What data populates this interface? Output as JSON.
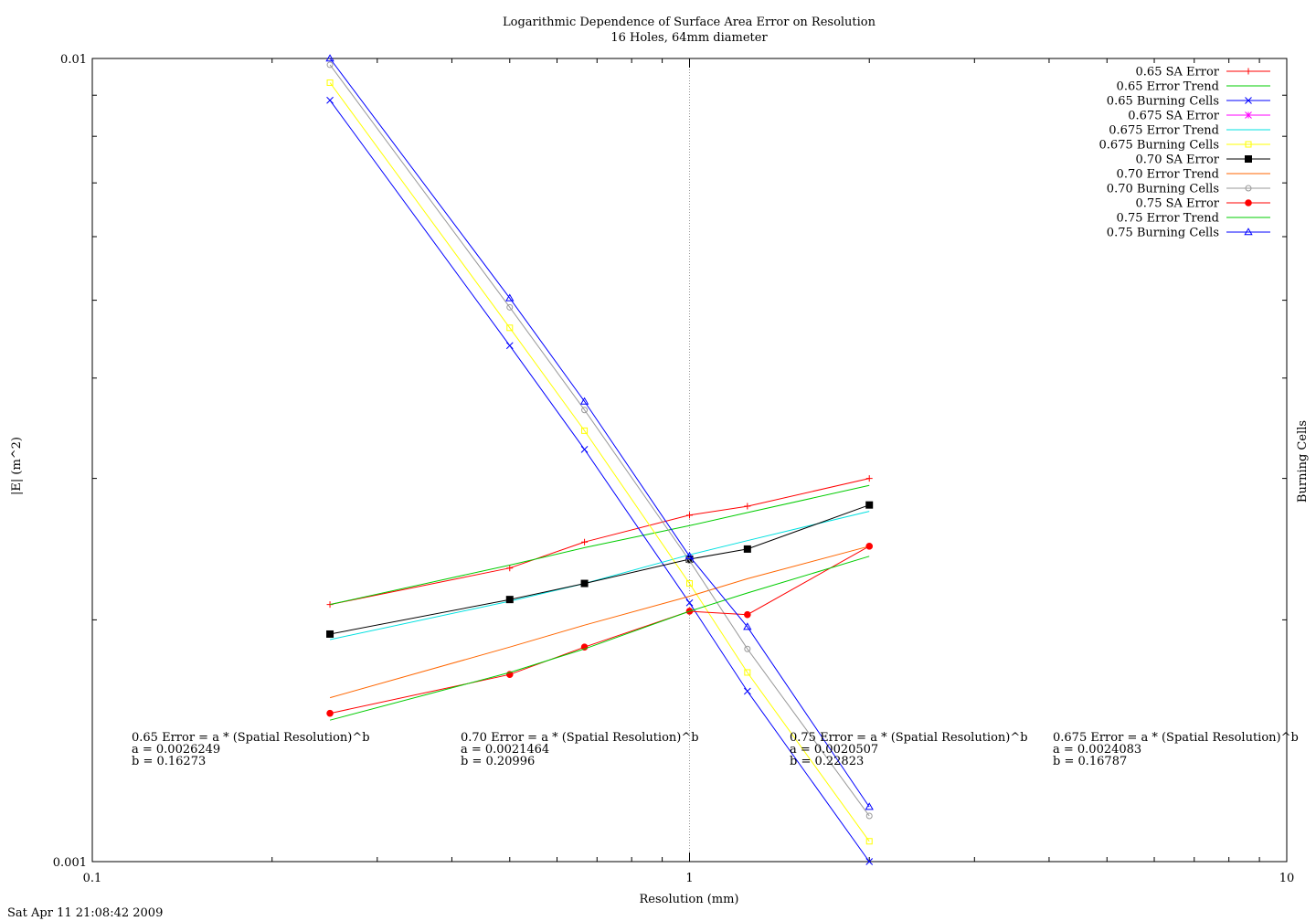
{
  "chart_data": {
    "type": "line",
    "title": "Logarithmic Dependence of Surface Area Error on Resolution",
    "subtitle": "16 Holes, 64mm diameter",
    "xlabel": "Resolution (mm)",
    "ylabel": "|E| (m^2)",
    "y2label": "Burning Cells",
    "xscale": "log",
    "yscale": "log",
    "xlim": [
      0.1,
      10
    ],
    "ylim": [
      0.001,
      0.01
    ],
    "x_ticks": [
      "0.1",
      "1",
      "10"
    ],
    "y_ticks": [
      "0.001",
      "0.01"
    ],
    "legend_position": "top-right",
    "vertical_reference_line": 1,
    "series": [
      {
        "name": "0.65 SA Error",
        "color": "#ff0000",
        "marker": "plus",
        "x": [
          0.25,
          0.5,
          0.667,
          1.0,
          1.25,
          2.0
        ],
        "y": [
          0.00209,
          0.00232,
          0.0025,
          0.0027,
          0.00277,
          0.003
        ]
      },
      {
        "name": "0.65 Error Trend",
        "color": "#00cc00",
        "marker": "none",
        "x": [
          0.25,
          0.5,
          0.667,
          1.0,
          1.25,
          2.0
        ],
        "y": [
          0.00209,
          0.00234,
          0.00246,
          0.00262,
          0.00272,
          0.00294
        ]
      },
      {
        "name": "0.65 Burning Cells",
        "color": "#0000ff",
        "marker": "x",
        "x": [
          0.25,
          0.5,
          0.667,
          1.0,
          1.25,
          2.0
        ],
        "y": [
          0.00887,
          0.00439,
          0.00326,
          0.0021,
          0.00163,
          0.001
        ]
      },
      {
        "name": "0.675 SA Error",
        "color": "#ff00ff",
        "marker": "star",
        "x": [],
        "y": []
      },
      {
        "name": "0.675 Error Trend",
        "color": "#00e0e0",
        "marker": "none",
        "x": [
          0.25,
          0.5,
          0.667,
          1.0,
          1.25,
          2.0
        ],
        "y": [
          0.00189,
          0.00211,
          0.00222,
          0.00241,
          0.00251,
          0.00273
        ]
      },
      {
        "name": "0.675 Burning Cells",
        "color": "#ffff00",
        "marker": "square-open",
        "x": [
          0.25,
          0.5,
          0.667,
          1.0,
          1.25,
          2.0
        ],
        "y": [
          0.00933,
          0.00462,
          0.00344,
          0.00222,
          0.00172,
          0.00106
        ]
      },
      {
        "name": "0.70 SA Error",
        "color": "#000000",
        "marker": "square-filled",
        "x": [
          0.25,
          0.5,
          0.667,
          1.0,
          1.25,
          2.0
        ],
        "y": [
          0.00192,
          0.00212,
          0.00222,
          0.00238,
          0.00245,
          0.00278
        ]
      },
      {
        "name": "0.70 Error Trend",
        "color": "#ff6600",
        "marker": "none",
        "x": [
          0.25,
          0.5,
          0.667,
          1.0,
          1.25,
          2.0
        ],
        "y": [
          0.0016,
          0.00185,
          0.00197,
          0.00214,
          0.00225,
          0.00247
        ]
      },
      {
        "name": "0.70 Burning Cells",
        "color": "#999999",
        "marker": "circle-open",
        "x": [
          0.25,
          0.5,
          0.667,
          1.0,
          1.25,
          2.0
        ],
        "y": [
          0.00982,
          0.0049,
          0.00365,
          0.00237,
          0.00184,
          0.00114
        ]
      },
      {
        "name": "0.75 SA Error",
        "color": "#ff0000",
        "marker": "circle-filled",
        "x": [
          0.25,
          0.5,
          0.667,
          1.0,
          1.25,
          2.0
        ],
        "y": [
          0.00153,
          0.00171,
          0.00185,
          0.00205,
          0.00203,
          0.00247
        ]
      },
      {
        "name": "0.75 Error Trend",
        "color": "#00cc00",
        "marker": "none",
        "x": [
          0.25,
          0.5,
          0.667,
          1.0,
          1.25,
          2.0
        ],
        "y": [
          0.0015,
          0.00172,
          0.00184,
          0.00205,
          0.00216,
          0.0024
        ]
      },
      {
        "name": "0.75 Burning Cells",
        "color": "#0000ff",
        "marker": "triangle-open",
        "x": [
          0.25,
          0.5,
          0.667,
          1.0,
          1.25,
          2.0
        ],
        "y": [
          0.01,
          0.00503,
          0.00374,
          0.0024,
          0.00196,
          0.00117
        ]
      }
    ],
    "annotations": [
      {
        "lines": [
          "0.65 Error = a * (Spatial Resolution)^b",
          "a = 0.0026249",
          "b = 0.16273"
        ]
      },
      {
        "lines": [
          "0.70 Error = a * (Spatial Resolution)^b",
          "a = 0.0021464",
          "b = 0.20996"
        ]
      },
      {
        "lines": [
          "0.75 Error = a * (Spatial Resolution)^b",
          "a = 0.0020507",
          "b = 0.22823"
        ]
      },
      {
        "lines": [
          "0.675 Error = a * (Spatial Resolution)^b",
          "a = 0.0024083",
          "b = 0.16787"
        ]
      }
    ],
    "timestamp": "Sat Apr 11 21:08:42 2009"
  }
}
